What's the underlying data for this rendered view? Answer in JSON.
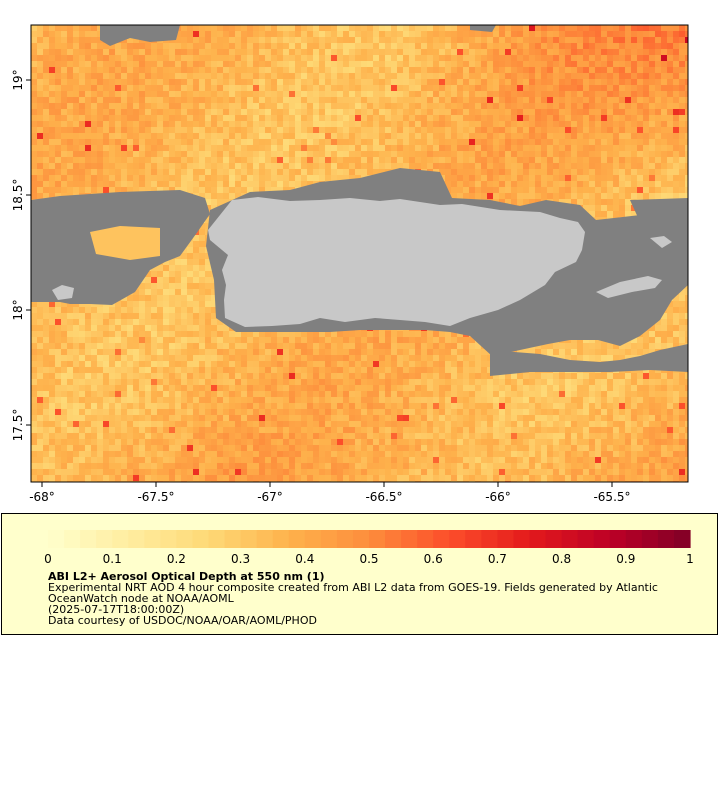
{
  "map": {
    "x_ticks": [
      "-68°",
      "-67.5°",
      "-67°",
      "-66.5°",
      "-66°",
      "-65.5°"
    ],
    "y_ticks": [
      "19°",
      "18.5°",
      "18°",
      "17.5°"
    ],
    "colors": {
      "no_data": "#808080",
      "land": "#c8c8c8",
      "frame": "#000000"
    }
  },
  "colorbar": {
    "min": 0,
    "max": 1,
    "tick_labels": [
      "0",
      "0.1",
      "0.2",
      "0.3",
      "0.4",
      "0.5",
      "0.6",
      "0.7",
      "0.8",
      "0.9",
      "1"
    ],
    "color_stops": [
      "#ffffcc",
      "#ffeda0",
      "#fed976",
      "#feb24c",
      "#fd8d3c",
      "#fc4e2a",
      "#e31a1c",
      "#bd0026",
      "#800026"
    ]
  },
  "legend": {
    "title": "ABI L2+ Aerosol Optical Depth at 550 nm (1)",
    "description": "Experimental NRT AOD 4 hour composite created from ABI L2 data from GOES-19. Fields generated by Atlantic OceanWatch node at NOAA/AOML",
    "timestamp": "(2025-07-17T18:00:00Z)",
    "credit": "Data courtesy of USDOC/NOAA/OAR/AOML/PHOD"
  }
}
